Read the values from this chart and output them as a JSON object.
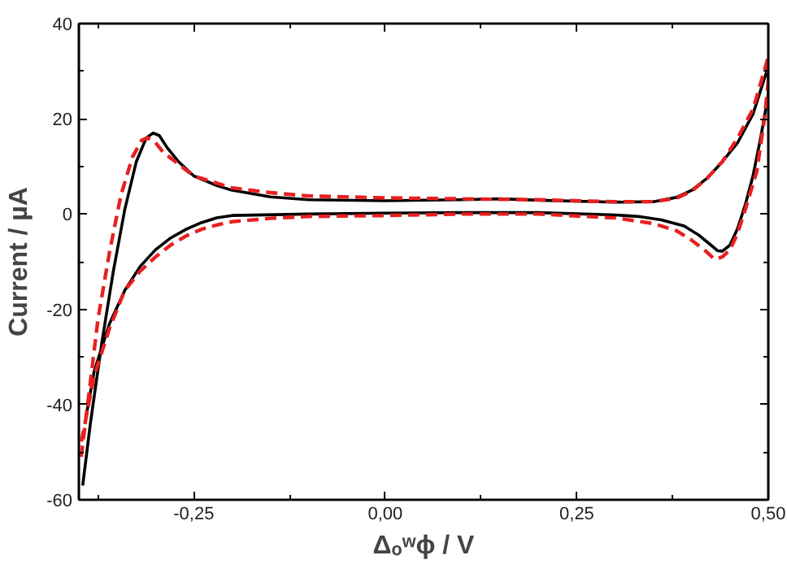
{
  "chart_data": {
    "type": "line",
    "xlabel": "Δₒʷϕ / V",
    "ylabel": "Current / µA",
    "xlim": [
      -0.4,
      0.5
    ],
    "ylim": [
      -60,
      40
    ],
    "xticks": [
      {
        "value": -0.375,
        "label": null
      },
      {
        "value": -0.25,
        "label": "-0,25"
      },
      {
        "value": -0.125,
        "label": null
      },
      {
        "value": 0.0,
        "label": "0,00"
      },
      {
        "value": 0.125,
        "label": null
      },
      {
        "value": 0.25,
        "label": "0,25"
      },
      {
        "value": 0.375,
        "label": null
      },
      {
        "value": 0.5,
        "label": "0,50"
      }
    ],
    "yticks": [
      -60,
      {
        "value": -50,
        "label": null
      },
      -40,
      {
        "value": -30,
        "label": null
      },
      -20,
      {
        "value": -10,
        "label": null
      },
      0,
      {
        "value": 10,
        "label": null
      },
      20,
      {
        "value": 30,
        "label": null
      },
      40
    ],
    "grid": false,
    "marker": "none",
    "series": [
      {
        "color": "#000000",
        "line_style": "solid",
        "x": [
          -0.395,
          -0.385,
          -0.37,
          -0.355,
          -0.34,
          -0.325,
          -0.312,
          -0.303,
          -0.295,
          -0.285,
          -0.27,
          -0.25,
          -0.22,
          -0.2,
          -0.15,
          -0.1,
          0.0,
          0.1,
          0.15,
          0.2,
          0.3,
          0.35,
          0.38,
          0.4,
          0.42,
          0.44,
          0.46,
          0.48,
          0.5,
          0.5,
          0.49,
          0.48,
          0.47,
          0.46,
          0.45,
          0.44,
          0.434,
          0.425,
          0.41,
          0.39,
          0.36,
          0.33,
          0.3,
          0.2,
          0.1,
          0.0,
          -0.1,
          -0.2,
          -0.22,
          -0.24,
          -0.26,
          -0.28,
          -0.3,
          -0.32,
          -0.34,
          -0.36,
          -0.38,
          -0.39
        ],
        "values": [
          -57,
          -44,
          -27,
          -12,
          1,
          11,
          16,
          17,
          16.5,
          14,
          11,
          8,
          6,
          5,
          3.6,
          3,
          2.8,
          3,
          3.2,
          2.9,
          2.5,
          2.6,
          3.5,
          5,
          7.5,
          11,
          15,
          21,
          31,
          25,
          16,
          8,
          2,
          -3,
          -6.5,
          -7.8,
          -7.7,
          -6.5,
          -4.5,
          -2.5,
          -1.2,
          -0.5,
          -0.2,
          0.3,
          0.3,
          0.2,
          0,
          -0.3,
          -0.8,
          -1.8,
          -3.2,
          -5,
          -7.5,
          -11,
          -16,
          -23,
          -33,
          -42
        ]
      },
      {
        "color": "#e82020",
        "line_style": "dashed",
        "x": [
          -0.397,
          -0.387,
          -0.375,
          -0.36,
          -0.345,
          -0.33,
          -0.318,
          -0.31,
          -0.3,
          -0.29,
          -0.27,
          -0.25,
          -0.22,
          -0.2,
          -0.15,
          -0.1,
          0.0,
          0.1,
          0.2,
          0.3,
          0.35,
          0.38,
          0.4,
          0.42,
          0.44,
          0.46,
          0.48,
          0.5,
          0.5,
          0.495,
          0.485,
          0.47,
          0.46,
          0.45,
          0.44,
          0.43,
          0.42,
          0.4,
          0.38,
          0.35,
          0.3,
          0.2,
          0.1,
          0.0,
          -0.1,
          -0.15,
          -0.2,
          -0.22,
          -0.24,
          -0.26,
          -0.28,
          -0.3,
          -0.32,
          -0.34,
          -0.36,
          -0.38,
          -0.397
        ],
        "values": [
          -51,
          -38,
          -22,
          -8,
          4,
          12,
          15.5,
          16,
          15,
          13,
          10.5,
          8,
          6.5,
          5.5,
          4.5,
          3.8,
          3.4,
          3.2,
          3,
          2.6,
          2.6,
          3.3,
          4.8,
          7.5,
          11,
          16,
          22,
          33,
          28,
          20,
          9,
          1,
          -4,
          -7.5,
          -9,
          -9.5,
          -8,
          -5.5,
          -3.5,
          -2,
          -0.8,
          0,
          0,
          -0.3,
          -0.5,
          -0.9,
          -1.6,
          -2.3,
          -3.2,
          -4.6,
          -6.5,
          -9,
          -12,
          -16,
          -24,
          -34,
          -48
        ]
      }
    ]
  }
}
